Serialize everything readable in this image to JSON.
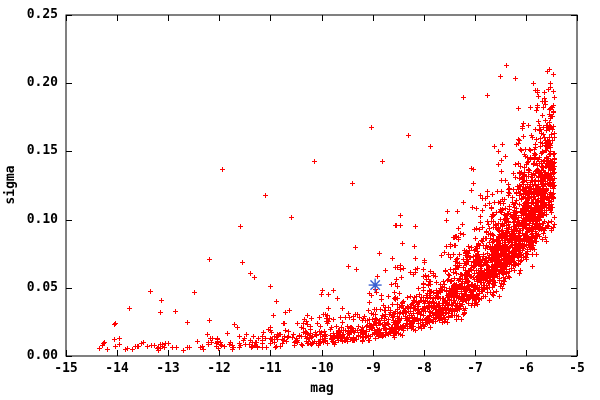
{
  "chart_data": {
    "type": "scatter",
    "title": "",
    "xlabel": "mag",
    "ylabel": "sigma",
    "xlim": [
      -15,
      -5
    ],
    "ylim": [
      0,
      0.25
    ],
    "grid": false,
    "legend": "none",
    "background_color": "#ffffff",
    "axis_color": "#000000",
    "x_ticks": [
      -15,
      -14,
      -13,
      -12,
      -11,
      -10,
      -9,
      -8,
      -7,
      -6,
      -5
    ],
    "x_tick_labels": [
      "-15",
      "-14",
      "-13",
      "-12",
      "-11",
      "-10",
      "-9",
      "-8",
      "-7",
      "-6",
      "-5"
    ],
    "y_ticks": [
      0,
      0.05,
      0.1,
      0.15,
      0.2,
      0.25
    ],
    "y_tick_labels": [
      "0.00",
      "0.05",
      "0.10",
      "0.15",
      "0.20",
      "0.25"
    ],
    "tick_style": "inward-mirrored",
    "series": [
      {
        "name": "photometric-errors",
        "marker": "plus",
        "color": "#ff0000",
        "marker_size_px": 5,
        "description": "Dense cloud of ~2500 red plus markers: sigma hugs a low envelope (~0.005) at faint magnitudes (mag -14.4 to -10) and rises exponentially toward bright end, forming a dense blob near mag -6.5..-5.45 at sigma 0.07-0.20; sparse lognormal tail of outliers above the band.",
        "generator": {
          "seed": 7,
          "count": 2500,
          "mag_min": -14.4,
          "mag_max": -5.45,
          "mag_density_k": 0.52,
          "envelope_base": 0.0035,
          "envelope_amp": 0.06,
          "envelope_ref_mag": -5.5,
          "envelope_scale": 1.6,
          "spread_mu": 0.14,
          "spread_ref_mag": -6.5,
          "spread_slope": 0.1,
          "spread_min": 0.35,
          "spread_max": 0.95,
          "sigma_clip_max": 0.212,
          "sigma_floor": 0.0035
        },
        "explicit_outliers": [
          [
            -11.95,
            0.137
          ],
          [
            -6.39,
            0.213
          ],
          [
            -6.76,
            0.191
          ],
          [
            -7.23,
            0.19
          ],
          [
            -8.3,
            0.162
          ],
          [
            -9.03,
            0.168
          ],
          [
            -9.4,
            0.127
          ],
          [
            -10.15,
            0.143
          ],
          [
            -11.1,
            0.118
          ],
          [
            -11.6,
            0.095
          ],
          [
            -10.6,
            0.102
          ],
          [
            -12.2,
            0.071
          ],
          [
            -12.5,
            0.047
          ],
          [
            -13.35,
            0.048
          ],
          [
            -14.27,
            0.0095
          ],
          [
            -14.04,
            0.024
          ],
          [
            -13.77,
            0.035
          ]
        ]
      },
      {
        "name": "highlighted-object",
        "marker": "asterisk",
        "color": "#3a5fd0",
        "marker_size_px": 13,
        "points": [
          [
            -8.95,
            0.052
          ]
        ]
      }
    ]
  }
}
